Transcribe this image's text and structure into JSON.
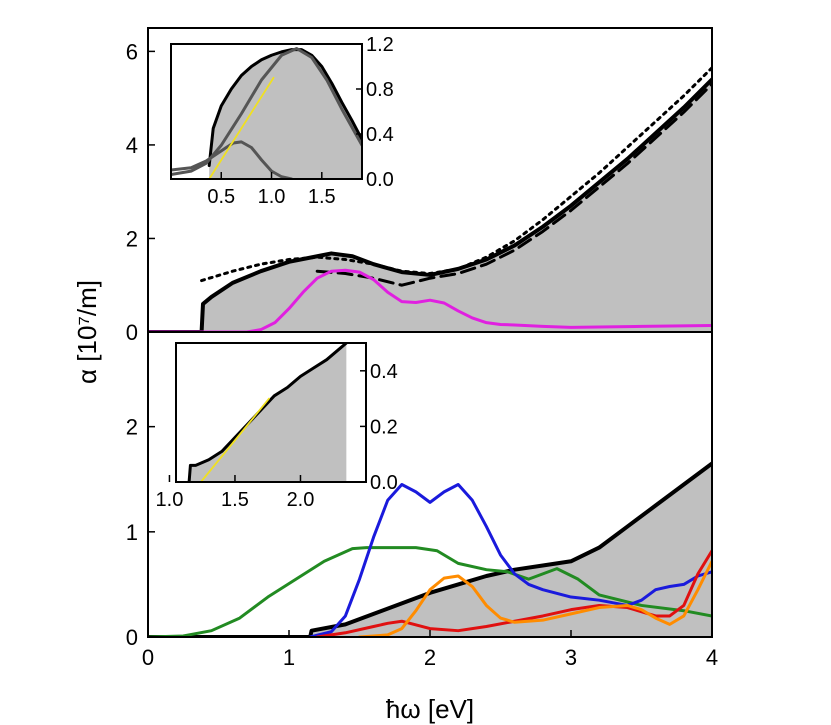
{
  "chart_data": [
    {
      "type": "area",
      "panel": "top",
      "xlim": [
        0,
        4
      ],
      "ylim": [
        0,
        6.5
      ],
      "yticks": [
        "0",
        "2",
        "4",
        "6"
      ],
      "series": [
        {
          "name": "fill-solid",
          "color": "#000000",
          "style": "solid",
          "filled": true,
          "fill": "#c0c0c0",
          "x": [
            0,
            0.38,
            0.39,
            0.45,
            0.6,
            0.8,
            1.0,
            1.2,
            1.3,
            1.45,
            1.6,
            1.8,
            2.0,
            2.2,
            2.4,
            2.6,
            2.8,
            3.0,
            3.2,
            3.4,
            3.6,
            3.8,
            4.0
          ],
          "y": [
            0,
            0,
            0.6,
            0.75,
            1.05,
            1.3,
            1.5,
            1.62,
            1.68,
            1.62,
            1.45,
            1.28,
            1.22,
            1.35,
            1.55,
            1.85,
            2.25,
            2.7,
            3.2,
            3.7,
            4.25,
            4.8,
            5.4
          ]
        },
        {
          "name": "dotted",
          "color": "#000000",
          "style": "dotted",
          "x": [
            0.38,
            0.6,
            0.8,
            1.0,
            1.2,
            1.4,
            1.6,
            1.8,
            2.0,
            2.2,
            2.4,
            2.6,
            2.8,
            3.0,
            3.2,
            3.4,
            3.6,
            3.8,
            4.0
          ],
          "y": [
            1.1,
            1.3,
            1.45,
            1.55,
            1.6,
            1.55,
            1.45,
            1.3,
            1.25,
            1.35,
            1.6,
            1.95,
            2.4,
            2.9,
            3.4,
            3.95,
            4.5,
            5.05,
            5.65
          ]
        },
        {
          "name": "dashed",
          "color": "#000000",
          "style": "dashed",
          "x": [
            1.2,
            1.4,
            1.6,
            1.8,
            2.0,
            2.2,
            2.4,
            2.6,
            2.8,
            3.0,
            3.2,
            3.4,
            3.6,
            3.8,
            4.0
          ],
          "y": [
            1.3,
            1.25,
            1.15,
            1.0,
            1.15,
            1.25,
            1.45,
            1.75,
            2.15,
            2.6,
            3.1,
            3.6,
            4.15,
            4.7,
            5.3
          ]
        },
        {
          "name": "magenta",
          "color": "#e020e0",
          "style": "solid",
          "x": [
            0,
            0.7,
            0.8,
            0.9,
            1.0,
            1.1,
            1.2,
            1.3,
            1.4,
            1.5,
            1.6,
            1.7,
            1.8,
            1.9,
            2.0,
            2.1,
            2.2,
            2.3,
            2.4,
            2.5,
            2.6,
            2.8,
            3.0,
            3.5,
            4.0
          ],
          "y": [
            0,
            0,
            0.05,
            0.2,
            0.5,
            0.85,
            1.15,
            1.3,
            1.32,
            1.28,
            1.12,
            0.85,
            0.65,
            0.63,
            0.68,
            0.62,
            0.45,
            0.3,
            0.2,
            0.16,
            0.15,
            0.12,
            0.1,
            0.12,
            0.14
          ]
        }
      ]
    },
    {
      "type": "area",
      "panel": "bottom",
      "xlim": [
        0,
        4
      ],
      "ylim": [
        0,
        2.9
      ],
      "xticks": [
        "0",
        "1",
        "2",
        "3",
        "4"
      ],
      "yticks": [
        "0",
        "1",
        "2"
      ],
      "xlabel": "ħω [eV]",
      "ylabel": "α [10⁷/m]",
      "series": [
        {
          "name": "fill-solid",
          "color": "#000000",
          "style": "solid",
          "filled": true,
          "fill": "#c0c0c0",
          "x": [
            0,
            1.15,
            1.16,
            1.4,
            1.6,
            1.8,
            2.0,
            2.2,
            2.4,
            2.6,
            2.8,
            3.0,
            3.2,
            3.4,
            3.6,
            3.8,
            4.0
          ],
          "y": [
            0,
            0,
            0.06,
            0.12,
            0.22,
            0.32,
            0.42,
            0.5,
            0.58,
            0.64,
            0.68,
            0.72,
            0.85,
            1.05,
            1.25,
            1.45,
            1.65
          ]
        },
        {
          "name": "green",
          "color": "#228b22",
          "style": "solid",
          "x": [
            0,
            0.25,
            0.45,
            0.65,
            0.85,
            1.05,
            1.25,
            1.45,
            1.55,
            1.7,
            1.9,
            2.05,
            2.2,
            2.4,
            2.55,
            2.7,
            2.9,
            3.05,
            3.2,
            3.5,
            3.8,
            4.0
          ],
          "y": [
            0,
            0.01,
            0.06,
            0.18,
            0.38,
            0.55,
            0.72,
            0.84,
            0.85,
            0.85,
            0.85,
            0.82,
            0.7,
            0.64,
            0.62,
            0.55,
            0.65,
            0.55,
            0.4,
            0.3,
            0.25,
            0.2
          ]
        },
        {
          "name": "blue",
          "color": "#1a1adc",
          "style": "solid",
          "x": [
            1.15,
            1.3,
            1.4,
            1.5,
            1.6,
            1.7,
            1.8,
            1.9,
            2.0,
            2.1,
            2.2,
            2.3,
            2.4,
            2.5,
            2.6,
            2.7,
            2.8,
            3.0,
            3.2,
            3.4,
            3.5,
            3.6,
            3.7,
            3.8,
            3.9,
            4.0
          ],
          "y": [
            0,
            0.05,
            0.2,
            0.55,
            0.95,
            1.3,
            1.45,
            1.38,
            1.28,
            1.38,
            1.45,
            1.3,
            1.05,
            0.78,
            0.6,
            0.5,
            0.45,
            0.38,
            0.35,
            0.3,
            0.35,
            0.45,
            0.48,
            0.5,
            0.58,
            0.62
          ]
        },
        {
          "name": "red",
          "color": "#e01010",
          "style": "solid",
          "x": [
            1.2,
            1.4,
            1.6,
            1.7,
            1.8,
            2.0,
            2.2,
            2.4,
            2.6,
            2.8,
            3.0,
            3.2,
            3.4,
            3.6,
            3.7,
            3.8,
            3.9,
            4.0
          ],
          "y": [
            0,
            0.04,
            0.1,
            0.13,
            0.15,
            0.08,
            0.06,
            0.1,
            0.15,
            0.2,
            0.26,
            0.3,
            0.28,
            0.2,
            0.2,
            0.3,
            0.6,
            0.82
          ]
        },
        {
          "name": "orange",
          "color": "#ff8c00",
          "style": "solid",
          "x": [
            1.5,
            1.7,
            1.8,
            1.9,
            2.0,
            2.1,
            2.2,
            2.3,
            2.4,
            2.5,
            2.6,
            2.8,
            3.0,
            3.2,
            3.4,
            3.5,
            3.6,
            3.7,
            3.8,
            3.9,
            4.0
          ],
          "y": [
            0,
            0.02,
            0.08,
            0.25,
            0.45,
            0.56,
            0.58,
            0.48,
            0.3,
            0.18,
            0.14,
            0.16,
            0.22,
            0.28,
            0.3,
            0.26,
            0.18,
            0.12,
            0.2,
            0.45,
            0.72
          ]
        }
      ]
    },
    {
      "type": "area",
      "panel": "top-inset",
      "xlim": [
        0,
        1.9
      ],
      "ylim": [
        0,
        1.2
      ],
      "xticks": [
        "0.5",
        "1.0",
        "1.5"
      ],
      "yticks": [
        "0.0",
        "0.4",
        "0.8",
        "1.2"
      ],
      "series": [
        {
          "name": "fill-solid",
          "color": "#000000",
          "style": "solid",
          "filled": true,
          "fill": "#c0c0c0",
          "x": [
            0.38,
            0.42,
            0.5,
            0.6,
            0.7,
            0.8,
            0.9,
            1.0,
            1.1,
            1.2,
            1.3,
            1.4,
            1.5,
            1.6,
            1.7,
            1.8,
            1.9
          ],
          "y": [
            0.12,
            0.45,
            0.65,
            0.8,
            0.92,
            1.0,
            1.06,
            1.1,
            1.13,
            1.15,
            1.15,
            1.1,
            1.0,
            0.85,
            0.68,
            0.52,
            0.35
          ]
        },
        {
          "name": "gray-broad",
          "color": "#555555",
          "style": "solid",
          "x": [
            0.0,
            0.2,
            0.35,
            0.5,
            0.7,
            0.9,
            1.1,
            1.25,
            1.4,
            1.55,
            1.7,
            1.9
          ],
          "y": [
            0.04,
            0.07,
            0.14,
            0.3,
            0.58,
            0.88,
            1.1,
            1.16,
            1.08,
            0.88,
            0.62,
            0.3
          ]
        },
        {
          "name": "gray-narrow",
          "color": "#555555",
          "style": "solid",
          "x": [
            0.0,
            0.2,
            0.35,
            0.45,
            0.55,
            0.62,
            0.7,
            0.8,
            0.9,
            1.0,
            1.1,
            1.2
          ],
          "y": [
            0.08,
            0.1,
            0.16,
            0.22,
            0.28,
            0.32,
            0.33,
            0.28,
            0.17,
            0.07,
            0.02,
            0.0
          ]
        },
        {
          "name": "yellow-fit",
          "color": "#f0e020",
          "style": "solid",
          "x": [
            0.38,
            1.02
          ],
          "y": [
            0.0,
            0.9
          ]
        }
      ]
    },
    {
      "type": "area",
      "panel": "bottom-inset",
      "xlim": [
        1.05,
        2.5
      ],
      "ylim": [
        0,
        0.5
      ],
      "xticks": [
        "1.0",
        "1.5",
        "2.0"
      ],
      "yticks": [
        "0.0",
        "0.2",
        "0.4"
      ],
      "series": [
        {
          "name": "fill-solid",
          "color": "#000000",
          "style": "solid",
          "filled": true,
          "fill": "#c0c0c0",
          "x": [
            1.15,
            1.16,
            1.2,
            1.3,
            1.4,
            1.5,
            1.6,
            1.7,
            1.8,
            1.9,
            2.0,
            2.1,
            2.2,
            2.3,
            2.35
          ],
          "y": [
            0.0,
            0.06,
            0.06,
            0.08,
            0.11,
            0.16,
            0.21,
            0.26,
            0.31,
            0.34,
            0.38,
            0.41,
            0.44,
            0.48,
            0.5
          ]
        },
        {
          "name": "yellow-fit",
          "color": "#f0e020",
          "style": "solid",
          "x": [
            1.24,
            1.76
          ],
          "y": [
            0.0,
            0.3
          ]
        }
      ]
    }
  ]
}
